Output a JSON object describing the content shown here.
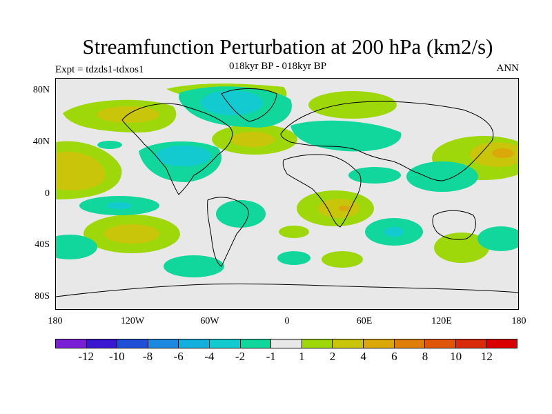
{
  "title": "Streamfunction Perturbation at 200 hPa (km2/s)",
  "subtitle": "018kyr BP - 018kyr BP",
  "left_label": "Expt = tdzds1-tdxos1",
  "right_label": "ANN",
  "lat_labels": [
    "80N",
    "40N",
    "0",
    "40S",
    "80S"
  ],
  "lon_labels": [
    "180",
    "120W",
    "60W",
    "0",
    "60E",
    "120E",
    "180"
  ],
  "colorbar": {
    "colors": [
      "#7a1fd6",
      "#3a17d0",
      "#1f4fd6",
      "#1c88e0",
      "#13b0dd",
      "#12cad0",
      "#11d79c",
      "#e8e8e8",
      "#9fd80a",
      "#c9c50a",
      "#dba80a",
      "#df7f0a",
      "#df560a",
      "#d92a0a",
      "#d80000"
    ],
    "labels": [
      "-12",
      "-10",
      "-8",
      "-6",
      "-4",
      "-2",
      "-1",
      "1",
      "2",
      "4",
      "6",
      "8",
      "10",
      "12"
    ]
  },
  "palette": {
    "pos_light": "#9fd80a",
    "pos_mid": "#c9c50a",
    "pos_high": "#dba80a",
    "neg_light": "#11d79c",
    "neg_mid": "#12cad0",
    "background": "#e8e8e8"
  }
}
